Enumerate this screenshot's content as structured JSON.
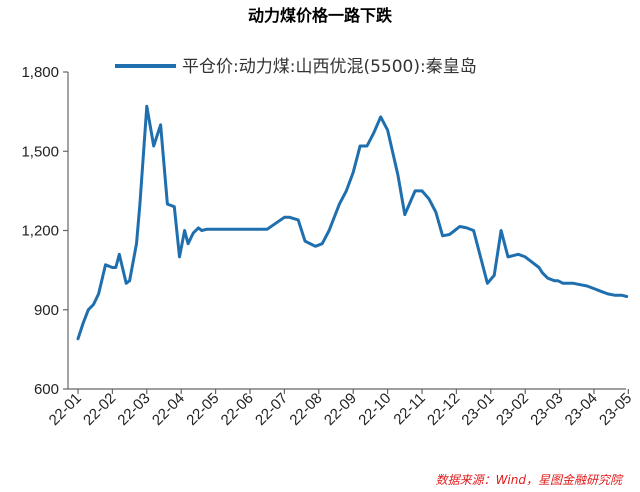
{
  "chart_data": {
    "type": "line",
    "title": "动力煤价格一路下跌",
    "source": "数据来源：Wind，星图金融研究院",
    "ylim": [
      600,
      1800
    ],
    "yticks": [
      "600",
      "900",
      "1,200",
      "1,500",
      "1,800"
    ],
    "ytick_values": [
      600,
      900,
      1200,
      1500,
      1800
    ],
    "categories": [
      "22-01",
      "22-02",
      "22-03",
      "22-04",
      "22-05",
      "22-06",
      "22-07",
      "22-08",
      "22-09",
      "22-10",
      "22-11",
      "22-12",
      "23-01",
      "23-02",
      "23-03",
      "23-04",
      "23-05"
    ],
    "grid": false,
    "legend_position": "top",
    "series": [
      {
        "name": "平仓价:动力煤:山西优混(5500):秦皇岛",
        "color": "#1f6fae",
        "x": [
          0,
          0.15,
          0.3,
          0.45,
          0.6,
          0.8,
          1.0,
          1.1,
          1.2,
          1.4,
          1.5,
          1.7,
          1.8,
          2.0,
          2.2,
          2.4,
          2.6,
          2.8,
          2.95,
          3.1,
          3.2,
          3.35,
          3.5,
          3.6,
          3.75,
          3.9,
          4.0,
          4.1,
          4.3,
          4.5,
          4.7,
          5.0,
          5.5,
          6.0,
          6.15,
          6.4,
          6.6,
          6.9,
          7.1,
          7.3,
          7.6,
          7.8,
          8.0,
          8.2,
          8.4,
          8.6,
          8.8,
          9.0,
          9.3,
          9.5,
          9.8,
          10.0,
          10.2,
          10.4,
          10.6,
          10.8,
          10.95,
          11.1,
          11.3,
          11.5,
          11.7,
          11.9,
          12.1,
          12.3,
          12.5,
          12.8,
          13.0,
          13.2,
          13.4,
          13.5,
          13.65,
          13.85,
          13.95,
          14.1,
          14.2,
          14.4,
          14.6,
          14.8,
          15.0,
          15.2,
          15.4,
          15.6,
          15.8,
          15.95
        ],
        "y": [
          790,
          850,
          900,
          920,
          960,
          1070,
          1060,
          1060,
          1110,
          1000,
          1010,
          1150,
          1300,
          1670,
          1520,
          1600,
          1300,
          1290,
          1100,
          1200,
          1150,
          1190,
          1210,
          1200,
          1205,
          1205,
          1205,
          1205,
          1205,
          1205,
          1205,
          1205,
          1205,
          1250,
          1250,
          1240,
          1160,
          1140,
          1150,
          1200,
          1300,
          1350,
          1420,
          1520,
          1520,
          1570,
          1630,
          1580,
          1410,
          1260,
          1350,
          1350,
          1320,
          1270,
          1180,
          1185,
          1200,
          1215,
          1210,
          1200,
          1100,
          1000,
          1030,
          1200,
          1100,
          1110,
          1100,
          1080,
          1060,
          1040,
          1020,
          1010,
          1010,
          1000,
          1000,
          1000,
          995,
          990,
          980,
          970,
          960,
          955,
          955,
          950
        ]
      }
    ]
  }
}
